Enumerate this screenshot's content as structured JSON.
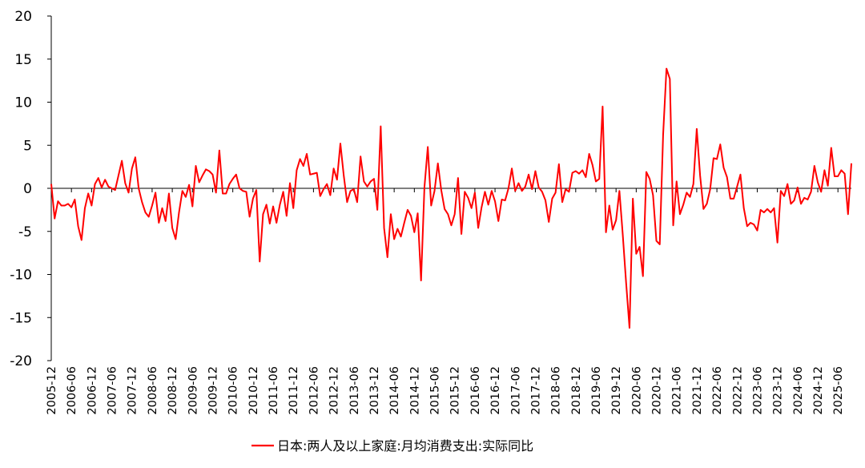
{
  "chart_data": {
    "type": "line",
    "title": "",
    "xlabel": "",
    "ylabel": "",
    "ylim": [
      -20,
      20
    ],
    "yticks": [
      20,
      15,
      10,
      5,
      0,
      -5,
      -10,
      -15,
      -20
    ],
    "grid": false,
    "legend_position": "bottom-center",
    "x_tick_labels": [
      "2005-12",
      "2006-06",
      "2006-12",
      "2007-06",
      "2007-12",
      "2008-06",
      "2008-12",
      "2009-06",
      "2009-12",
      "2010-06",
      "2010-12",
      "2011-06",
      "2011-12",
      "2012-06",
      "2012-12",
      "2013-06",
      "2013-12",
      "2014-06",
      "2014-12",
      "2015-06",
      "2015-12",
      "2016-06",
      "2016-12",
      "2017-06",
      "2017-12",
      "2018-06",
      "2018-12",
      "2019-06",
      "2019-12",
      "2020-06",
      "2020-12",
      "2021-06",
      "2021-12",
      "2022-06",
      "2022-12",
      "2023-06",
      "2023-12",
      "2024-06",
      "2024-12",
      "2025-06"
    ],
    "series": [
      {
        "name": "日本:两人及以上家庭:月均消费支出:实际同比",
        "color": "#ff0000",
        "start": "2005-12",
        "values": [
          0.5,
          -3.5,
          -1.5,
          -2.0,
          -2.0,
          -1.8,
          -2.2,
          -1.3,
          -4.4,
          -6.0,
          -2.3,
          -0.6,
          -2.0,
          0.5,
          1.2,
          0.1,
          1.0,
          0.2,
          0.0,
          -0.2,
          1.5,
          3.2,
          0.6,
          -0.5,
          2.3,
          3.6,
          0.0,
          -1.6,
          -2.8,
          -3.3,
          -2.0,
          -0.5,
          -4.0,
          -2.3,
          -3.8,
          -0.6,
          -4.6,
          -5.9,
          -2.8,
          -0.3,
          -1.0,
          0.4,
          -2.1,
          2.6,
          0.7,
          1.5,
          2.2,
          2.0,
          1.6,
          -0.5,
          4.4,
          -0.6,
          -0.6,
          0.5,
          1.1,
          1.6,
          0.0,
          -0.3,
          -0.4,
          -3.3,
          -1.2,
          -0.2,
          -8.5,
          -3.0,
          -1.9,
          -4.1,
          -2.1,
          -4.0,
          -1.9,
          -0.4,
          -3.2,
          0.6,
          -2.3,
          2.1,
          3.4,
          2.6,
          4.0,
          1.6,
          1.7,
          1.8,
          -0.9,
          -0.1,
          0.5,
          -0.8,
          2.3,
          1.0,
          5.2,
          1.5,
          -1.6,
          -0.3,
          -0.1,
          -1.6,
          3.7,
          0.8,
          0.2,
          0.8,
          1.1,
          -2.5,
          7.2,
          -4.6,
          -8.0,
          -3.0,
          -5.9,
          -4.7,
          -5.6,
          -4.0,
          -2.5,
          -3.2,
          -5.1,
          -2.9,
          -10.7,
          0.1,
          4.8,
          -2.0,
          -0.3,
          2.9,
          -0.2,
          -2.4,
          -3.0,
          -4.3,
          -3.0,
          1.2,
          -5.3,
          -0.4,
          -1.1,
          -2.3,
          -0.5,
          -4.6,
          -2.2,
          -0.4,
          -1.9,
          -0.3,
          -1.5,
          -3.8,
          -1.3,
          -1.4,
          0.0,
          2.3,
          -0.3,
          0.6,
          -0.3,
          0.2,
          1.6,
          -0.1,
          2.0,
          0.1,
          -0.4,
          -1.4,
          -3.9,
          -1.2,
          -0.5,
          2.8,
          -1.6,
          -0.1,
          -0.4,
          1.8,
          2.0,
          1.7,
          2.1,
          1.3,
          4.0,
          2.7,
          0.8,
          1.1,
          9.5,
          -5.1,
          -2.0,
          -4.8,
          -3.7,
          -0.3,
          -5.4,
          -11.0,
          -16.2,
          -1.2,
          -7.6,
          -6.8,
          -10.2,
          1.9,
          1.1,
          -0.8,
          -6.1,
          -6.5,
          6.2,
          13.9,
          12.7,
          -4.3,
          0.8,
          -3.0,
          -1.9,
          -0.5,
          -1.0,
          0.5,
          6.9,
          1.5,
          -2.4,
          -1.8,
          -0.1,
          3.5,
          3.4,
          5.1,
          2.4,
          1.3,
          -1.2,
          -1.2,
          0.2,
          1.6,
          -2.3,
          -4.4,
          -4.0,
          -4.2,
          -4.9,
          -2.5,
          -2.8,
          -2.4,
          -2.8,
          -2.3,
          -6.3,
          -0.3,
          -0.9,
          0.5,
          -1.8,
          -1.4,
          0.1,
          -1.8,
          -1.1,
          -1.3,
          -0.4,
          2.6,
          0.7,
          -0.4,
          2.1,
          0.3,
          4.7,
          1.4,
          1.4,
          2.1,
          1.7,
          -3.0,
          2.9
        ]
      }
    ]
  }
}
